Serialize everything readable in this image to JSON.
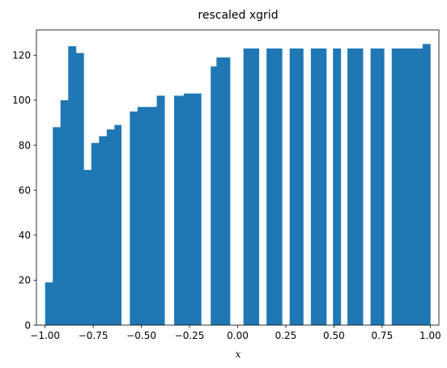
{
  "chart_data": {
    "type": "bar",
    "title": "rescaled xgrid",
    "xlabel": "x",
    "ylabel": "",
    "xlim": [
      -1.045,
      1.045
    ],
    "ylim": [
      0,
      131.25
    ],
    "xticks": [
      -1.0,
      -0.75,
      -0.5,
      -0.25,
      0.0,
      0.25,
      0.5,
      0.75,
      1.0
    ],
    "xtick_labels": [
      "−1.00",
      "−0.75",
      "−0.50",
      "−0.25",
      "0.00",
      "0.25",
      "0.50",
      "0.75",
      "1.00"
    ],
    "yticks": [
      0,
      20,
      40,
      60,
      80,
      100,
      120
    ],
    "ytick_labels": [
      "0",
      "20",
      "40",
      "60",
      "80",
      "100",
      "120"
    ],
    "grid": false,
    "bar_color": "#1f77b4",
    "bars": [
      {
        "x0": -1.0,
        "x1": -0.96,
        "value": 19
      },
      {
        "x0": -0.96,
        "x1": -0.92,
        "value": 88
      },
      {
        "x0": -0.92,
        "x1": -0.88,
        "value": 100
      },
      {
        "x0": -0.88,
        "x1": -0.84,
        "value": 124
      },
      {
        "x0": -0.84,
        "x1": -0.8,
        "value": 121
      },
      {
        "x0": -0.8,
        "x1": -0.76,
        "value": 69
      },
      {
        "x0": -0.76,
        "x1": -0.72,
        "value": 81
      },
      {
        "x0": -0.72,
        "x1": -0.68,
        "value": 84
      },
      {
        "x0": -0.68,
        "x1": -0.64,
        "value": 87
      },
      {
        "x0": -0.64,
        "x1": -0.605,
        "value": 89
      },
      {
        "x0": -0.56,
        "x1": -0.52,
        "value": 95
      },
      {
        "x0": -0.52,
        "x1": -0.47,
        "value": 97
      },
      {
        "x0": -0.47,
        "x1": -0.42,
        "value": 97
      },
      {
        "x0": -0.42,
        "x1": -0.38,
        "value": 102
      },
      {
        "x0": -0.33,
        "x1": -0.28,
        "value": 102
      },
      {
        "x0": -0.28,
        "x1": -0.22,
        "value": 103
      },
      {
        "x0": -0.22,
        "x1": -0.19,
        "value": 103
      },
      {
        "x0": -0.14,
        "x1": -0.11,
        "value": 115
      },
      {
        "x0": -0.11,
        "x1": -0.06,
        "value": 119
      },
      {
        "x0": -0.06,
        "x1": -0.04,
        "value": 119
      },
      {
        "x0": 0.03,
        "x1": 0.11,
        "value": 123
      },
      {
        "x0": 0.15,
        "x1": 0.23,
        "value": 123
      },
      {
        "x0": 0.27,
        "x1": 0.34,
        "value": 123
      },
      {
        "x0": 0.38,
        "x1": 0.46,
        "value": 123
      },
      {
        "x0": 0.495,
        "x1": 0.535,
        "value": 123
      },
      {
        "x0": 0.57,
        "x1": 0.65,
        "value": 123
      },
      {
        "x0": 0.69,
        "x1": 0.76,
        "value": 123
      },
      {
        "x0": 0.8,
        "x1": 0.96,
        "value": 123
      },
      {
        "x0": 0.96,
        "x1": 1.0,
        "value": 125
      }
    ]
  }
}
